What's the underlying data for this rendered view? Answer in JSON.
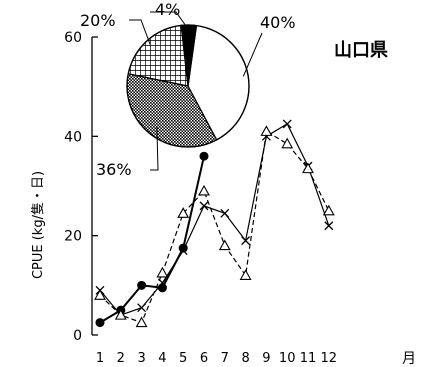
{
  "chart_data": {
    "type": "line",
    "title": "山口県",
    "ylabel": "CPUE (kg/隻・日)",
    "xlabel": "月",
    "ylim": [
      0,
      60
    ],
    "yticks": [
      0,
      20,
      40,
      60
    ],
    "x": [
      1,
      2,
      3,
      4,
      5,
      6,
      7,
      8,
      9,
      10,
      11,
      12
    ],
    "xtick_labels": [
      "1",
      "2",
      "3",
      "4",
      "5",
      "6",
      "7",
      "8",
      "9",
      "10",
      "11",
      "12"
    ],
    "grid": false,
    "series": [
      {
        "marker": "filled-circle",
        "line": "solid",
        "values": [
          2.5,
          5,
          10,
          9.5,
          17.5,
          36,
          null,
          null,
          null,
          null,
          null,
          null
        ]
      },
      {
        "marker": "cross",
        "line": "solid",
        "values": [
          9,
          4,
          5.5,
          10.5,
          17,
          26,
          24.5,
          19,
          40,
          42.5,
          34,
          22
        ]
      },
      {
        "marker": "open-triangle",
        "line": "dashed",
        "values": [
          8,
          4,
          2.5,
          12.5,
          24.5,
          29,
          18,
          12,
          41,
          38.5,
          33.5,
          25
        ]
      }
    ],
    "pie": {
      "slices": [
        {
          "label": "40%",
          "value": 40,
          "fill": "white"
        },
        {
          "label": "36%",
          "value": 36,
          "fill": "dense-dots"
        },
        {
          "label": "20%",
          "value": 20,
          "fill": "grid"
        },
        {
          "label": "4%",
          "value": 4,
          "fill": "black"
        }
      ]
    }
  }
}
